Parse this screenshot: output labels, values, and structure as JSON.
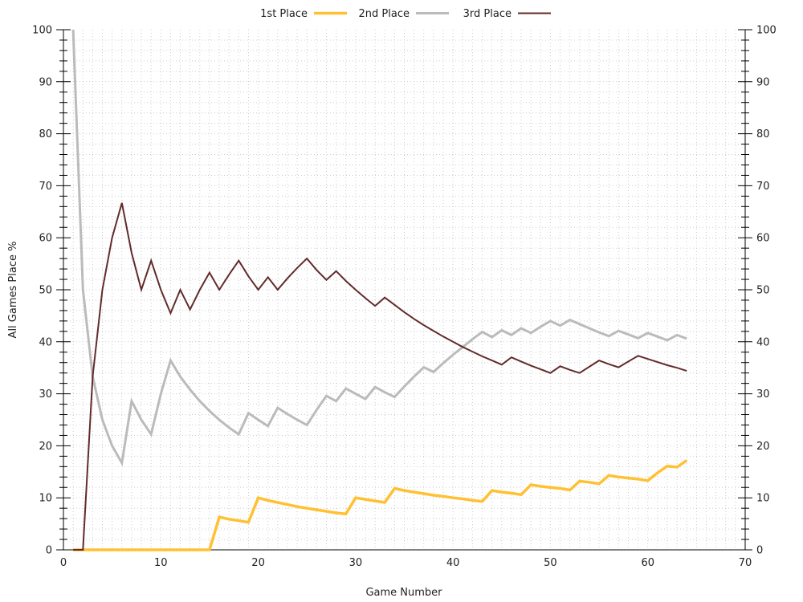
{
  "chart_data": {
    "type": "line",
    "xlabel": "Game Number",
    "ylabel": "All Games Place %",
    "xlim": [
      0,
      70
    ],
    "ylim": [
      0,
      100
    ],
    "x_ticks": [
      0,
      10,
      20,
      30,
      40,
      50,
      60,
      70
    ],
    "y_ticks": [
      0,
      10,
      20,
      30,
      40,
      50,
      60,
      70,
      80,
      90,
      100
    ],
    "grid": "dotted",
    "legend_position": "top-center",
    "mirror_y_axis": true,
    "series": [
      {
        "name": "1st Place",
        "color": "#ffc132",
        "x": [
          1,
          2,
          3,
          4,
          5,
          6,
          7,
          8,
          9,
          10,
          11,
          12,
          13,
          14,
          15,
          16,
          17,
          18,
          19,
          20,
          21,
          22,
          23,
          24,
          25,
          26,
          27,
          28,
          29,
          30,
          31,
          32,
          33,
          34,
          35,
          36,
          37,
          38,
          39,
          40,
          41,
          42,
          43,
          44,
          45,
          46,
          47,
          48,
          49,
          50,
          51,
          52,
          53,
          54,
          55,
          56,
          57,
          58,
          59,
          60,
          61,
          62,
          63,
          64
        ],
        "y": [
          0,
          0,
          0,
          0,
          0,
          0,
          0,
          0,
          0,
          0,
          0,
          0,
          0,
          0,
          0,
          6.3,
          5.9,
          5.6,
          5.3,
          10,
          9.5,
          9.1,
          8.7,
          8.3,
          8,
          7.7,
          7.4,
          7.1,
          6.9,
          10,
          9.7,
          9.4,
          9.1,
          11.8,
          11.4,
          11.1,
          10.8,
          10.5,
          10.3,
          10,
          9.8,
          9.5,
          9.3,
          11.4,
          11.1,
          10.9,
          10.6,
          12.5,
          12.2,
          12,
          11.8,
          11.5,
          13.2,
          13,
          12.7,
          14.3,
          14,
          13.8,
          13.6,
          13.3,
          14.8,
          16.1,
          15.9,
          17.2
        ]
      },
      {
        "name": "2nd Place",
        "color": "#bbbbbb",
        "x": [
          1,
          2,
          3,
          4,
          5,
          6,
          7,
          8,
          9,
          10,
          11,
          12,
          13,
          14,
          15,
          16,
          17,
          18,
          19,
          20,
          21,
          22,
          23,
          24,
          25,
          26,
          27,
          28,
          29,
          30,
          31,
          32,
          33,
          34,
          35,
          36,
          37,
          38,
          39,
          40,
          41,
          42,
          43,
          44,
          45,
          46,
          47,
          48,
          49,
          50,
          51,
          52,
          53,
          54,
          55,
          56,
          57,
          58,
          59,
          60,
          61,
          62,
          63,
          64
        ],
        "y": [
          100,
          50,
          33.3,
          25,
          20,
          16.7,
          28.6,
          25,
          22.2,
          30,
          36.4,
          33.3,
          30.8,
          28.6,
          26.7,
          25,
          23.5,
          22.2,
          26.3,
          25,
          23.8,
          27.3,
          26.1,
          25,
          24,
          26.9,
          29.6,
          28.6,
          31,
          30,
          29,
          31.3,
          30.3,
          29.4,
          31.4,
          33.3,
          35.1,
          34.2,
          35.9,
          37.5,
          39,
          40.5,
          41.9,
          40.9,
          42.2,
          41.3,
          42.6,
          41.7,
          42.9,
          44,
          43.1,
          44.2,
          43.4,
          42.6,
          41.8,
          41.1,
          42.1,
          41.4,
          40.7,
          41.7,
          41,
          40.3,
          41.3,
          40.6
        ]
      },
      {
        "name": "3rd Place",
        "color": "#622b2b",
        "x": [
          1,
          2,
          3,
          4,
          5,
          6,
          7,
          8,
          9,
          10,
          11,
          12,
          13,
          14,
          15,
          16,
          17,
          18,
          19,
          20,
          21,
          22,
          23,
          24,
          25,
          26,
          27,
          28,
          29,
          30,
          31,
          32,
          33,
          34,
          35,
          36,
          37,
          38,
          39,
          40,
          41,
          42,
          43,
          44,
          45,
          46,
          47,
          48,
          49,
          50,
          51,
          52,
          53,
          54,
          55,
          56,
          57,
          58,
          59,
          60,
          61,
          62,
          63,
          64
        ],
        "y": [
          0,
          0,
          33.3,
          50,
          60,
          66.7,
          57.1,
          50,
          55.6,
          50,
          45.5,
          50,
          46.2,
          50,
          53.3,
          50,
          52.9,
          55.6,
          52.6,
          50,
          52.4,
          50,
          52.2,
          54.2,
          56,
          53.8,
          51.9,
          53.6,
          51.7,
          50,
          48.4,
          46.9,
          48.5,
          47.1,
          45.7,
          44.4,
          43.2,
          42.1,
          41,
          40,
          39,
          38.1,
          37.2,
          36.4,
          35.6,
          37,
          36.2,
          35.4,
          34.7,
          34,
          35.3,
          34.6,
          34,
          35.2,
          36.4,
          35.7,
          35.1,
          36.2,
          37.3,
          36.7,
          36.1,
          35.5,
          35,
          34.4
        ]
      }
    ]
  }
}
